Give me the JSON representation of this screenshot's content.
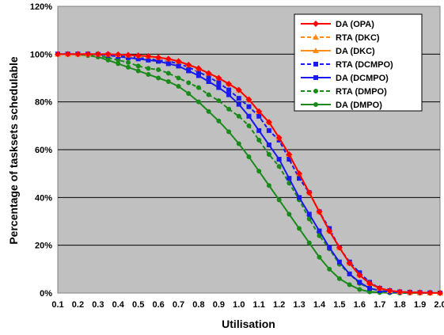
{
  "chart_data": {
    "type": "line",
    "title": "",
    "xlabel": "Utilisation",
    "ylabel": "Percentage of tasksets schedulable",
    "xlim": [
      0.1,
      2.0
    ],
    "ylim": [
      0,
      120
    ],
    "grid": true,
    "legend_position": "top-right",
    "x_ticks": [
      "0.1",
      "0.2",
      "0.3",
      "0.4",
      "0.5",
      "0.6",
      "0.7",
      "0.8",
      "0.9",
      "1.0",
      "1.1",
      "1.2",
      "1.3",
      "1.4",
      "1.5",
      "1.6",
      "1.7",
      "1.8",
      "1.9",
      "2.0"
    ],
    "y_ticks": [
      "0%",
      "20%",
      "40%",
      "60%",
      "80%",
      "100%",
      "120%"
    ],
    "x": [
      0.1,
      0.15,
      0.2,
      0.25,
      0.3,
      0.35,
      0.4,
      0.45,
      0.5,
      0.55,
      0.6,
      0.65,
      0.7,
      0.75,
      0.8,
      0.85,
      0.9,
      0.95,
      1.0,
      1.05,
      1.1,
      1.15,
      1.2,
      1.25,
      1.3,
      1.35,
      1.4,
      1.45,
      1.5,
      1.55,
      1.6,
      1.65,
      1.7,
      1.75,
      1.8,
      1.85,
      1.9,
      1.95,
      2.0
    ],
    "series": [
      {
        "name": "DA (OPA)",
        "color": "#ff0000",
        "dash": "solid",
        "marker": "diamond",
        "values": [
          100,
          100,
          100,
          100,
          100,
          100,
          99.8,
          99.6,
          99.4,
          99.1,
          98.6,
          98,
          97,
          95.5,
          94,
          92,
          90,
          87.5,
          85,
          81,
          76,
          71.5,
          65,
          58,
          50,
          42,
          34,
          26,
          19,
          12.5,
          7.5,
          4,
          2,
          1,
          0.5,
          0.3,
          0.2,
          0.1,
          0
        ]
      },
      {
        "name": "RTA (DKC)",
        "color": "#ff8c1a",
        "dash": "dashed",
        "marker": "triangle",
        "values": [
          100,
          100,
          100,
          100,
          100,
          100,
          99.8,
          99.6,
          99.4,
          99.1,
          98.6,
          98,
          97,
          95.5,
          94,
          92,
          90,
          87.5,
          85,
          81,
          76,
          71.5,
          65,
          58,
          50,
          42,
          34,
          26,
          19,
          12.5,
          7.5,
          4,
          2,
          1,
          0.5,
          0.3,
          0.2,
          0.1,
          0
        ]
      },
      {
        "name": "DA (DKC)",
        "color": "#ff8c1a",
        "dash": "solid",
        "marker": "triangle",
        "values": [
          100,
          100,
          100,
          100,
          100,
          100,
          99.8,
          99.6,
          99.4,
          99.1,
          98.6,
          98,
          97,
          95.5,
          94,
          92,
          90,
          87.5,
          85,
          81,
          76,
          71.5,
          65,
          58,
          50,
          42,
          34,
          26,
          19,
          12.5,
          7.5,
          4,
          2,
          1,
          0.5,
          0.3,
          0.2,
          0.1,
          0
        ]
      },
      {
        "name": "RTA (DCMPO)",
        "color": "#1a1aee",
        "dash": "dashed",
        "marker": "square",
        "values": [
          100,
          100,
          100,
          100,
          99.9,
          99.7,
          99.3,
          99,
          98.5,
          98,
          97.5,
          97,
          96,
          94.5,
          92.5,
          90.5,
          88,
          85,
          81.5,
          78,
          74,
          68,
          64,
          56,
          48,
          42,
          34,
          27,
          19,
          13,
          8.5,
          4.5,
          2,
          1,
          0.5,
          0.3,
          0.2,
          0.1,
          0
        ]
      },
      {
        "name": "DA (DCMPO)",
        "color": "#1a1aee",
        "dash": "solid",
        "marker": "square",
        "values": [
          100,
          100,
          100,
          100,
          99.8,
          99.5,
          99,
          98.5,
          98,
          97.5,
          97,
          96,
          95,
          93,
          91,
          88.5,
          86,
          83,
          79,
          74,
          68,
          62,
          56,
          48,
          40,
          33,
          26,
          19,
          13,
          8,
          4.5,
          2,
          1,
          0.5,
          0.3,
          0.2,
          0.1,
          0,
          0
        ]
      },
      {
        "name": "RTA (DMPO)",
        "color": "#1a8a1a",
        "dash": "dashed",
        "marker": "circle",
        "values": [
          100,
          100,
          99.9,
          99.7,
          99.3,
          98.5,
          97.5,
          96.5,
          95,
          94,
          93.5,
          92,
          90,
          88,
          86,
          83,
          80.5,
          77,
          74,
          70,
          64,
          58,
          53,
          46,
          39,
          31,
          24,
          18.5,
          12,
          8,
          4,
          2,
          1,
          0.5,
          0.3,
          0.2,
          0.1,
          0,
          0
        ]
      },
      {
        "name": "DA (DMPO)",
        "color": "#1a8a1a",
        "dash": "solid",
        "marker": "circle",
        "values": [
          100,
          100,
          99.8,
          99.4,
          98.8,
          97.5,
          96,
          94.5,
          93,
          91.5,
          90,
          88.5,
          86.5,
          83.5,
          80,
          76,
          72,
          67.5,
          62.5,
          57,
          51,
          45,
          39,
          33,
          27,
          21,
          15,
          10,
          6,
          3.5,
          1.5,
          0.5,
          0.2,
          0.1,
          0,
          0,
          0,
          0,
          0
        ]
      }
    ]
  }
}
